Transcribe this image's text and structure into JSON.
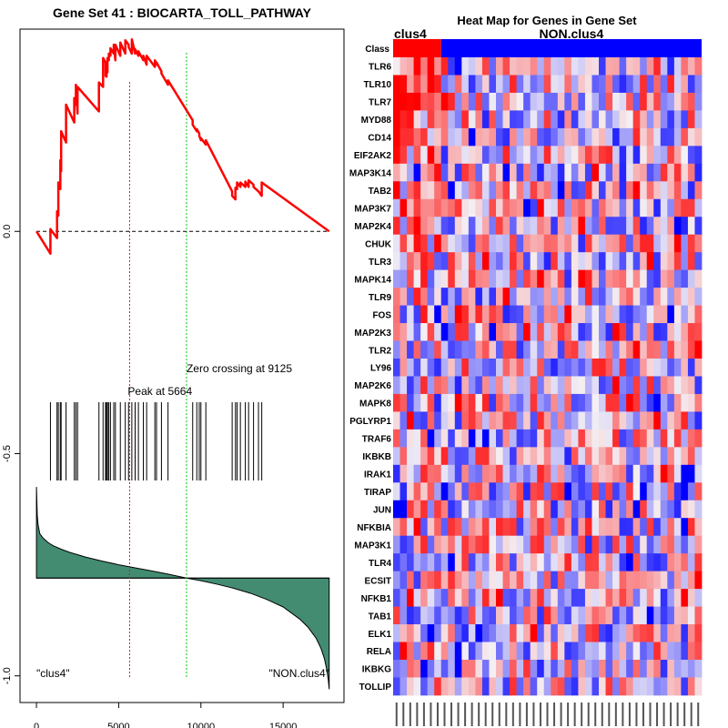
{
  "chart_data": [
    {
      "type": "line",
      "title": "Gene Set  41 : BIOCARTA_TOLL_PATHWAY",
      "xlim": [
        -1000,
        18700
      ],
      "ylim": [
        -1.06,
        0.455
      ],
      "x_ticks": [
        0,
        5000,
        10000,
        15000
      ],
      "x_tick_labels": [
        "0",
        "5000",
        "10000",
        "15000"
      ],
      "y_ticks": [
        0.0,
        -0.5,
        -1.0
      ],
      "y_tick_labels": [
        "0.0",
        "-0.5",
        "-1.0"
      ],
      "n_genes": 17800,
      "peak_position": 5664,
      "zero_crossing": 9125,
      "peak_label": "Peak at 5664",
      "zero_crossing_label": "Zero crossing at 9125",
      "left_class_label": "\"clus4\"",
      "right_class_label": "\"NON.clus4\"",
      "hit_positions": [
        850,
        1250,
        1330,
        1450,
        1500,
        1800,
        2300,
        2400,
        2500,
        3800,
        4050,
        4200,
        4260,
        4320,
        4400,
        4500,
        4700,
        4800,
        5100,
        5400,
        5600,
        5800,
        6000,
        6200,
        6500,
        6700,
        7200,
        7300,
        7600,
        8000,
        9500,
        9750,
        9900,
        10000,
        10300,
        11900,
        12100,
        12200,
        12400,
        12700,
        12900,
        13200,
        13500,
        13700
      ],
      "es_curve": {
        "x": [
          0,
          850,
          850,
          1250,
          1250,
          1330,
          1330,
          1450,
          1450,
          1500,
          1500,
          1800,
          1800,
          2300,
          2300,
          2400,
          2400,
          2500,
          2500,
          3800,
          3800,
          4050,
          4050,
          4200,
          4200,
          4260,
          4260,
          4320,
          4320,
          4400,
          4400,
          4500,
          4500,
          4700,
          4700,
          4800,
          4800,
          5100,
          5100,
          5400,
          5400,
          5600,
          5600,
          5800,
          5800,
          6000,
          6000,
          6200,
          6200,
          6500,
          6500,
          6700,
          6700,
          7200,
          7200,
          7300,
          7300,
          7600,
          7600,
          8000,
          8000,
          9500,
          9500,
          9750,
          9750,
          9900,
          9900,
          10000,
          10000,
          10300,
          10300,
          11900,
          11900,
          12100,
          12100,
          12200,
          12200,
          12400,
          12400,
          12700,
          12700,
          12900,
          12900,
          13200,
          13200,
          13500,
          13500,
          13700,
          13700,
          17800
        ],
        "y": [
          0.0,
          -0.05,
          0.005,
          -0.015,
          0.045,
          0.035,
          0.11,
          0.095,
          0.16,
          0.135,
          0.225,
          0.2,
          0.285,
          0.245,
          0.3,
          0.285,
          0.33,
          0.265,
          0.325,
          0.27,
          0.335,
          0.325,
          0.39,
          0.38,
          0.35,
          0.348,
          0.36,
          0.358,
          0.39,
          0.385,
          0.4,
          0.395,
          0.412,
          0.4,
          0.42,
          0.385,
          0.42,
          0.395,
          0.425,
          0.4,
          0.43,
          0.42,
          0.415,
          0.4,
          0.432,
          0.4,
          0.41,
          0.395,
          0.405,
          0.385,
          0.395,
          0.375,
          0.395,
          0.37,
          0.385,
          0.375,
          0.38,
          0.36,
          0.355,
          0.33,
          0.34,
          0.25,
          0.24,
          0.225,
          0.23,
          0.22,
          0.215,
          0.205,
          0.21,
          0.195,
          0.205,
          0.09,
          0.08,
          0.072,
          0.098,
          0.095,
          0.11,
          0.1,
          0.11,
          0.1,
          0.112,
          0.1,
          0.115,
          0.105,
          0.1,
          0.09,
          0.09,
          0.08,
          0.11,
          0.0
        ]
      },
      "rank_metric": {
        "x": [
          0,
          50,
          100,
          200,
          400,
          700,
          1000,
          1500,
          2000,
          3000,
          4000,
          5000,
          6000,
          7000,
          8000,
          9125,
          10000,
          11000,
          12000,
          13000,
          14000,
          15000,
          16000,
          16500,
          17000,
          17300,
          17500,
          17650,
          17750,
          17800
        ],
        "y": [
          -0.575,
          -0.64,
          -0.66,
          -0.68,
          -0.69,
          -0.7,
          -0.707,
          -0.715,
          -0.722,
          -0.733,
          -0.742,
          -0.75,
          -0.757,
          -0.764,
          -0.771,
          -0.78,
          -0.786,
          -0.794,
          -0.803,
          -0.814,
          -0.828,
          -0.845,
          -0.872,
          -0.89,
          -0.915,
          -0.938,
          -0.96,
          -0.985,
          -1.01,
          -1.03
        ],
        "baseline": -0.78
      }
    },
    {
      "type": "heatmap",
      "title": "Heat Map for Genes in Gene Set",
      "class_groups": [
        {
          "name": "clus4",
          "count": 7,
          "color": "#ff0000"
        },
        {
          "name": "NON.clus4",
          "count": 38,
          "color": "#0000ff"
        }
      ],
      "class_row_label": "Class",
      "genes": [
        "TLR6",
        "TLR10",
        "TLR7",
        "MYD88",
        "CD14",
        "EIF2AK2",
        "MAP3K14",
        "TAB2",
        "MAP3K7",
        "MAP2K4",
        "CHUK",
        "TLR3",
        "MAPK14",
        "TLR9",
        "FOS",
        "MAP2K3",
        "TLR2",
        "LY96",
        "MAP2K6",
        "MAPK8",
        "PGLYRP1",
        "TRAF6",
        "IKBKB",
        "IRAK1",
        "TIRAP",
        "JUN",
        "NFKBIA",
        "MAP3K1",
        "TLR4",
        "ECSIT",
        "NFKB1",
        "TAB1",
        "ELK1",
        "RELA",
        "IKBKG",
        "TOLLIP"
      ],
      "colors": {
        "high": "#ff0000",
        "mid": "#f4f0f4",
        "low": "#0000ff"
      }
    }
  ]
}
